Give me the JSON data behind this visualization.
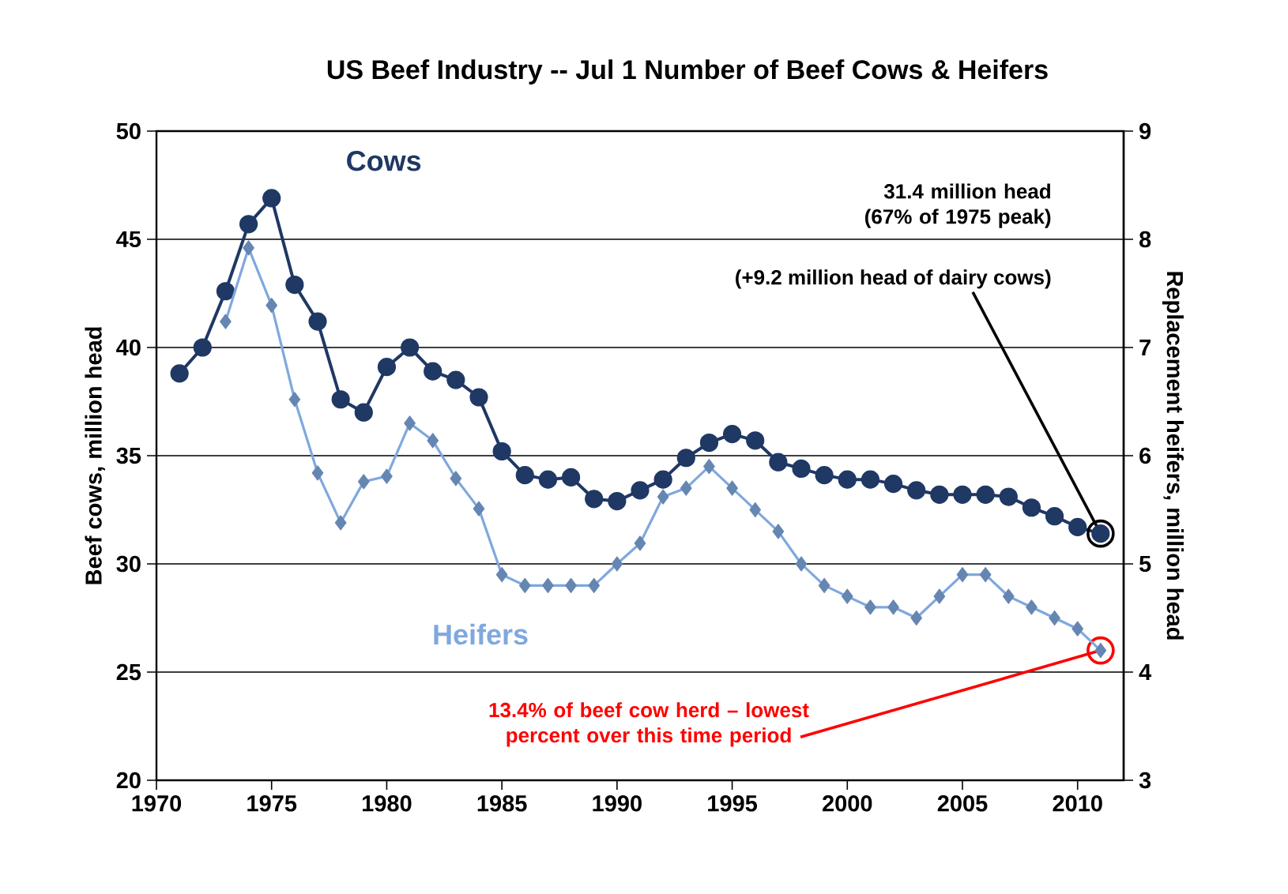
{
  "chart_data": {
    "type": "line",
    "title": "US Beef Industry -- Jul 1 Number of Beef Cows & Heifers",
    "ylabel": "Beef cows, million head",
    "y2label": "Replacement heifers, million head",
    "x": [
      1971,
      1972,
      1973,
      1974,
      1975,
      1976,
      1977,
      1978,
      1979,
      1980,
      1981,
      1982,
      1983,
      1984,
      1985,
      1986,
      1987,
      1988,
      1989,
      1990,
      1991,
      1992,
      1993,
      1994,
      1995,
      1996,
      1997,
      1998,
      1999,
      2000,
      2001,
      2002,
      2003,
      2004,
      2005,
      2006,
      2007,
      2008,
      2009,
      2010,
      2011
    ],
    "series": [
      {
        "name": "Cows",
        "color": "#1f3864",
        "marker": "circle",
        "values": [
          38.8,
          40.0,
          42.6,
          45.7,
          46.9,
          42.9,
          41.2,
          37.6,
          37.0,
          39.1,
          40.0,
          38.9,
          38.5,
          37.7,
          35.2,
          34.1,
          33.9,
          34.0,
          33.0,
          32.9,
          33.4,
          33.9,
          34.9,
          35.6,
          36.0,
          35.7,
          34.7,
          34.4,
          34.1,
          33.9,
          33.9,
          33.7,
          33.4,
          33.2,
          33.2,
          33.2,
          33.1,
          32.6,
          32.2,
          31.7,
          31.4
        ]
      },
      {
        "name": "Heifers",
        "color": "#7fa8de",
        "marker": "diamond",
        "axis": "y2",
        "values": [
          null,
          null,
          7.24,
          7.92,
          7.39,
          6.52,
          5.84,
          5.38,
          5.76,
          5.81,
          6.3,
          6.14,
          5.79,
          5.51,
          4.9,
          4.8,
          4.8,
          4.8,
          4.8,
          5.0,
          5.19,
          5.62,
          5.7,
          5.9,
          5.7,
          5.5,
          5.3,
          5.0,
          4.8,
          4.7,
          4.6,
          4.6,
          4.5,
          4.7,
          4.9,
          4.9,
          4.7,
          4.6,
          4.5,
          4.4,
          4.2
        ]
      }
    ],
    "xlim": [
      1970,
      2012
    ],
    "xticks": [
      1970,
      1975,
      1980,
      1985,
      1990,
      1995,
      2000,
      2005,
      2010
    ],
    "ylim": [
      20,
      50
    ],
    "yticks": [
      20,
      25,
      30,
      35,
      40,
      45,
      50
    ],
    "y2lim": [
      3,
      9
    ],
    "y2ticks": [
      3,
      4,
      5,
      6,
      7,
      8,
      9
    ],
    "grid": "y",
    "annotations": [
      "31.4 million head (67% of 1975 peak)",
      {
        "text": "(+9.2 million head of dairy cows)",
        "x": 2011,
        "y": 31.4
      },
      {
        "text": "13.4% of beef cow herd – lowest percent over this time period",
        "x": 2011,
        "y": 26.0
      }
    ]
  }
}
